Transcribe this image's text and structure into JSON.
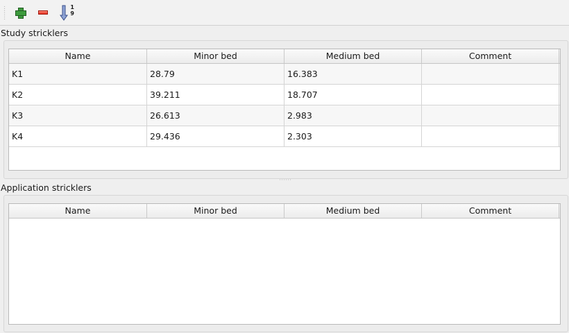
{
  "toolbar": {
    "buttons": [
      {
        "name": "add",
        "icon": "plus-icon"
      },
      {
        "name": "remove",
        "icon": "minus-icon"
      },
      {
        "name": "sort",
        "icon": "sort-ascending-icon",
        "top": "1",
        "bottom": "9"
      }
    ]
  },
  "study": {
    "title": "Study stricklers",
    "columns": [
      "Name",
      "Minor bed",
      "Medium bed",
      "Comment"
    ],
    "rows": [
      [
        "K1",
        "28.79",
        "16.383",
        ""
      ],
      [
        "K2",
        "39.211",
        "18.707",
        ""
      ],
      [
        "K3",
        "26.613",
        "2.983",
        ""
      ],
      [
        "K4",
        "29.436",
        "2.303",
        ""
      ]
    ]
  },
  "application": {
    "title": "Application stricklers",
    "columns": [
      "Name",
      "Minor bed",
      "Medium bed",
      "Comment"
    ],
    "rows": []
  }
}
